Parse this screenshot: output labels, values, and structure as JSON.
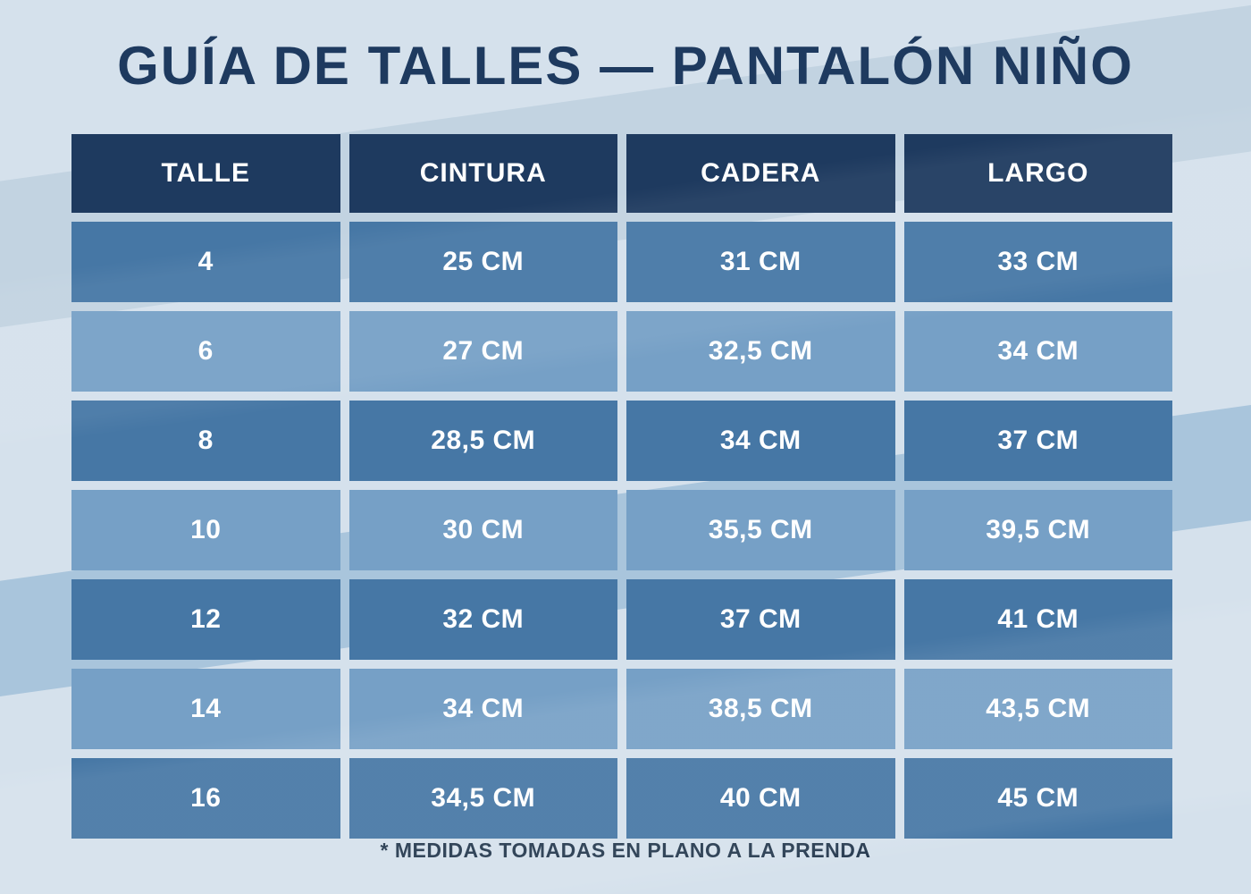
{
  "page": {
    "title": "GUÍA DE TALLES — PANTALÓN NIÑO",
    "footnote": "* MEDIDAS TOMADAS EN PLANO A LA PRENDA"
  },
  "table": {
    "headers": [
      "TALLE",
      "CINTURA",
      "CADERA",
      "LARGO"
    ],
    "rows": [
      [
        "4",
        "25 CM",
        "31 CM",
        "33 CM"
      ],
      [
        "6",
        "27 CM",
        "32,5 CM",
        "34 CM"
      ],
      [
        "8",
        "28,5 CM",
        "34 CM",
        "37 CM"
      ],
      [
        "10",
        "30 CM",
        "35,5 CM",
        "39,5 CM"
      ],
      [
        "12",
        "32 CM",
        "37 CM",
        "41 CM"
      ],
      [
        "14",
        "34 CM",
        "38,5 CM",
        "43,5 CM"
      ],
      [
        "16",
        "34,5 CM",
        "40 CM",
        "45 CM"
      ]
    ]
  },
  "colors": {
    "title_navy": "#1e3a5f",
    "header_navy": "#1e3a5f",
    "row_dark_blue": "#4677a5",
    "row_light_blue": "#76a0c6",
    "cell_text": "#ffffff",
    "background": "#d5e1ec",
    "stripe_dark": "#c2d3e1",
    "stripe_medium": "#a9c5dc"
  },
  "chart_data": {
    "type": "table",
    "title": "GUÍA DE TALLES — PANTALÓN NIÑO",
    "columns": [
      "TALLE",
      "CINTURA",
      "CADERA",
      "LARGO"
    ],
    "rows": [
      [
        "4",
        "25 CM",
        "31 CM",
        "33 CM"
      ],
      [
        "6",
        "27 CM",
        "32,5 CM",
        "34 CM"
      ],
      [
        "8",
        "28,5 CM",
        "34 CM",
        "37 CM"
      ],
      [
        "10",
        "30 CM",
        "35,5 CM",
        "39,5 CM"
      ],
      [
        "12",
        "32 CM",
        "37 CM",
        "41 CM"
      ],
      [
        "14",
        "34 CM",
        "38,5 CM",
        "43,5 CM"
      ],
      [
        "16",
        "34,5 CM",
        "40 CM",
        "45 CM"
      ]
    ],
    "units": "CM",
    "footnote": "* MEDIDAS TOMADAS EN PLANO A LA PRENDA"
  }
}
